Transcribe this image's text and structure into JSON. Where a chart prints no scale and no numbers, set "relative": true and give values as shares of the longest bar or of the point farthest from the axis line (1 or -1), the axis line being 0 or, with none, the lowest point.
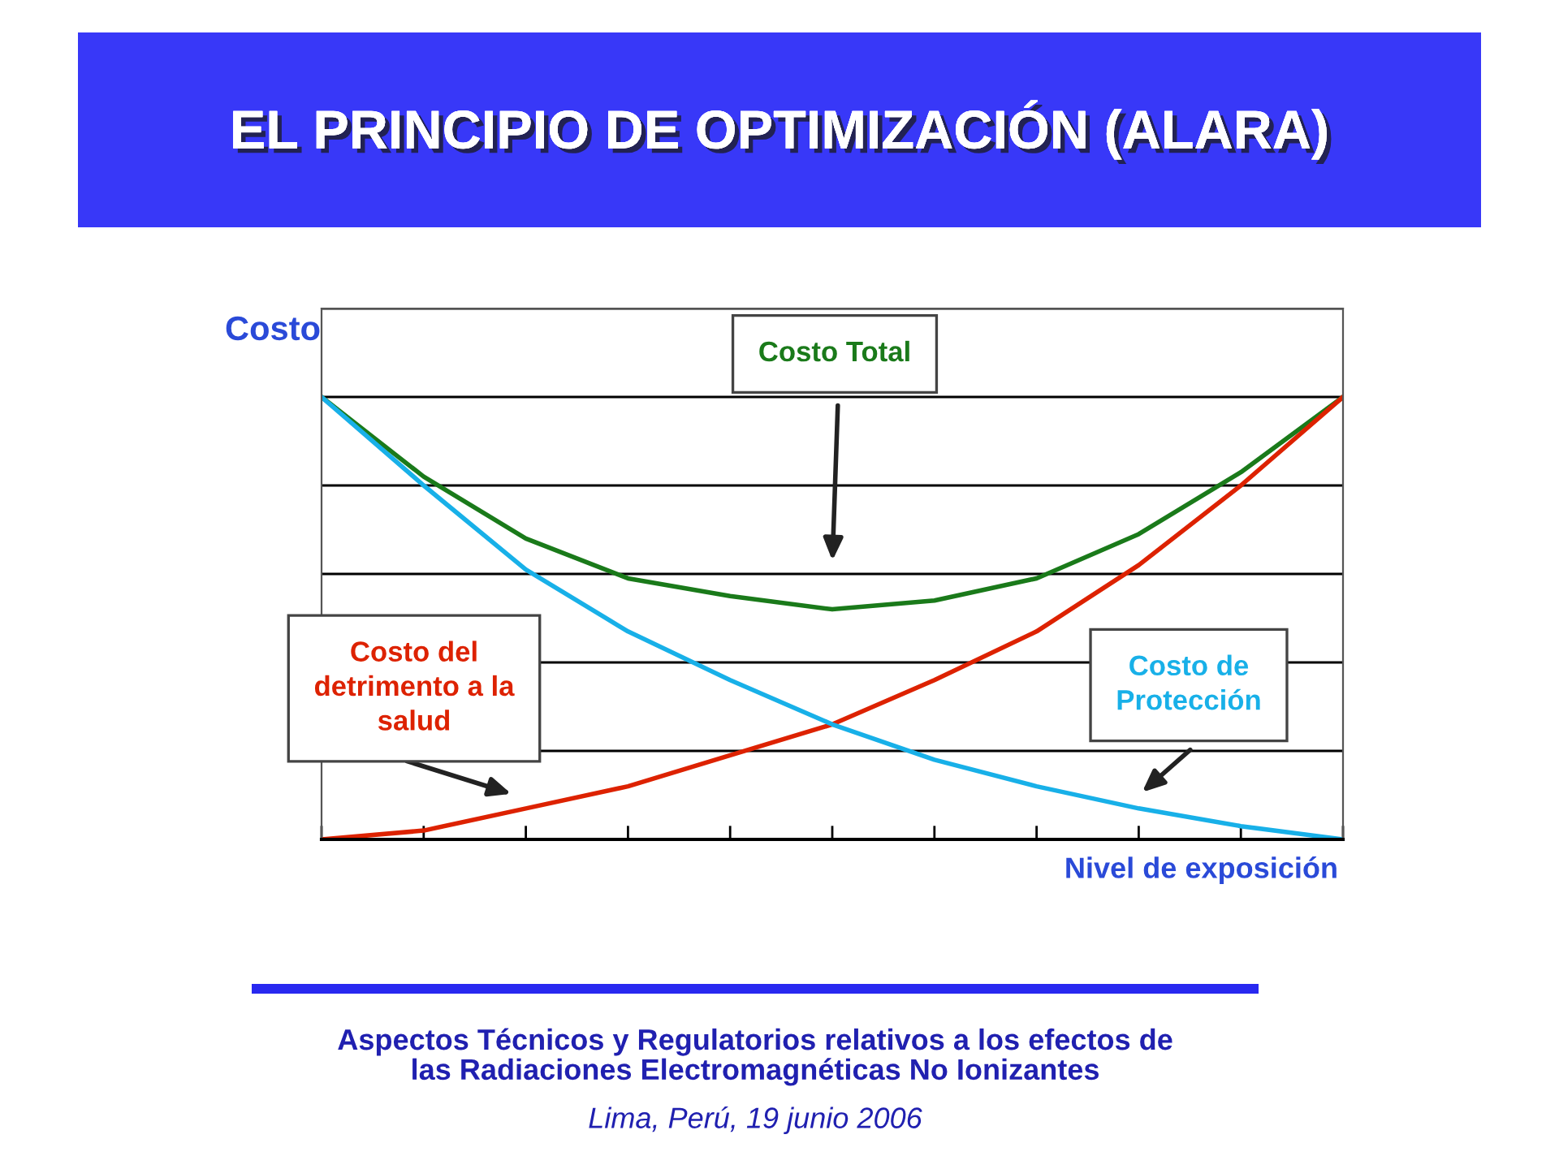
{
  "chart_data": {
    "type": "line",
    "title": "EL PRINCIPIO DE OPTIMIZACIÓN (ALARA)",
    "ylabel": "Costo",
    "xlabel": "Nivel de exposición",
    "relative": true,
    "grid": "y",
    "legend": false,
    "marker": "none",
    "line_style": "solid",
    "categories": [
      null,
      null,
      null,
      null,
      null,
      null,
      null,
      null,
      null,
      null,
      null
    ],
    "series": [
      {
        "name": "Costo Total",
        "color": "#1a7a1a",
        "values": [
          1.0,
          0.82,
          0.68,
          0.59,
          0.55,
          0.52,
          0.54,
          0.59,
          0.69,
          0.83,
          1.0
        ]
      },
      {
        "name": "Costo del\ndetrimento a la\nsalud",
        "color": "#dd2200",
        "values": [
          0.0,
          0.02,
          0.07,
          0.12,
          0.19,
          0.26,
          0.36,
          0.47,
          0.62,
          0.8,
          1.0
        ]
      },
      {
        "name": "Costo de\nProtección",
        "color": "#18b0e8",
        "values": [
          1.0,
          0.8,
          0.61,
          0.47,
          0.36,
          0.26,
          0.18,
          0.12,
          0.07,
          0.03,
          0.0
        ]
      }
    ],
    "annotations": [
      "Aspectos Técnicos y Regulatorios relativos a los efectos de\nlas Radiaciones Electromagnéticas No Ionizantes",
      "Lima, Perú, 19 junio 2006"
    ]
  }
}
